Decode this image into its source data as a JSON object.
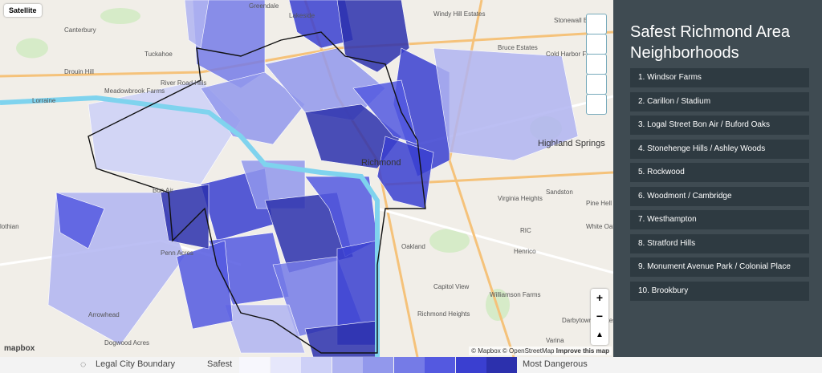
{
  "map": {
    "satellite_button": "Satellite",
    "labels": [
      "Greendale",
      "Lakeside",
      "Windy Hill Estates",
      "Stonewall Estates",
      "Canterbury",
      "Tuckahoe",
      "Bruce Estates",
      "Cold Harbor Farms",
      "Drouin Hill",
      "River Road Hills",
      "Meadowbrook Farms",
      "Lorraine",
      "Highland Springs",
      "Richmond",
      "Bon Air",
      "Sandston",
      "Virginia Heights",
      "Pine Hell",
      "Oakland",
      "Henrico",
      "White Oak Swamp",
      "RIC",
      "Capitol View",
      "Williamson Farms",
      "Richmond Heights",
      "Darbytown Estates",
      "Varina",
      "Arrowhead",
      "Penn Acres",
      "Dogwood Acres",
      "lothian"
    ],
    "zoom_in": "+",
    "zoom_out": "−",
    "logo": "mapbox",
    "attribution": "© Mapbox © OpenStreetMap",
    "improve": "Improve this map"
  },
  "sidebar": {
    "title": "Safest Richmond Area Neighborhoods",
    "items": [
      "1. Windsor Farms",
      "2. Carillon / Stadium",
      "3. Logal Street Bon Air / Buford Oaks",
      "4. Stonehenge Hills / Ashley Woods",
      "5. Rockwood",
      "6. Woodmont / Cambridge",
      "7. Westhampton",
      "8. Stratford Hills",
      "9. Monument Avenue Park / Colonial Place",
      "10. Brookbury"
    ]
  },
  "legend": {
    "boundary": "Legal City Boundary",
    "low": "Safest",
    "high": "Most Dangerous"
  }
}
